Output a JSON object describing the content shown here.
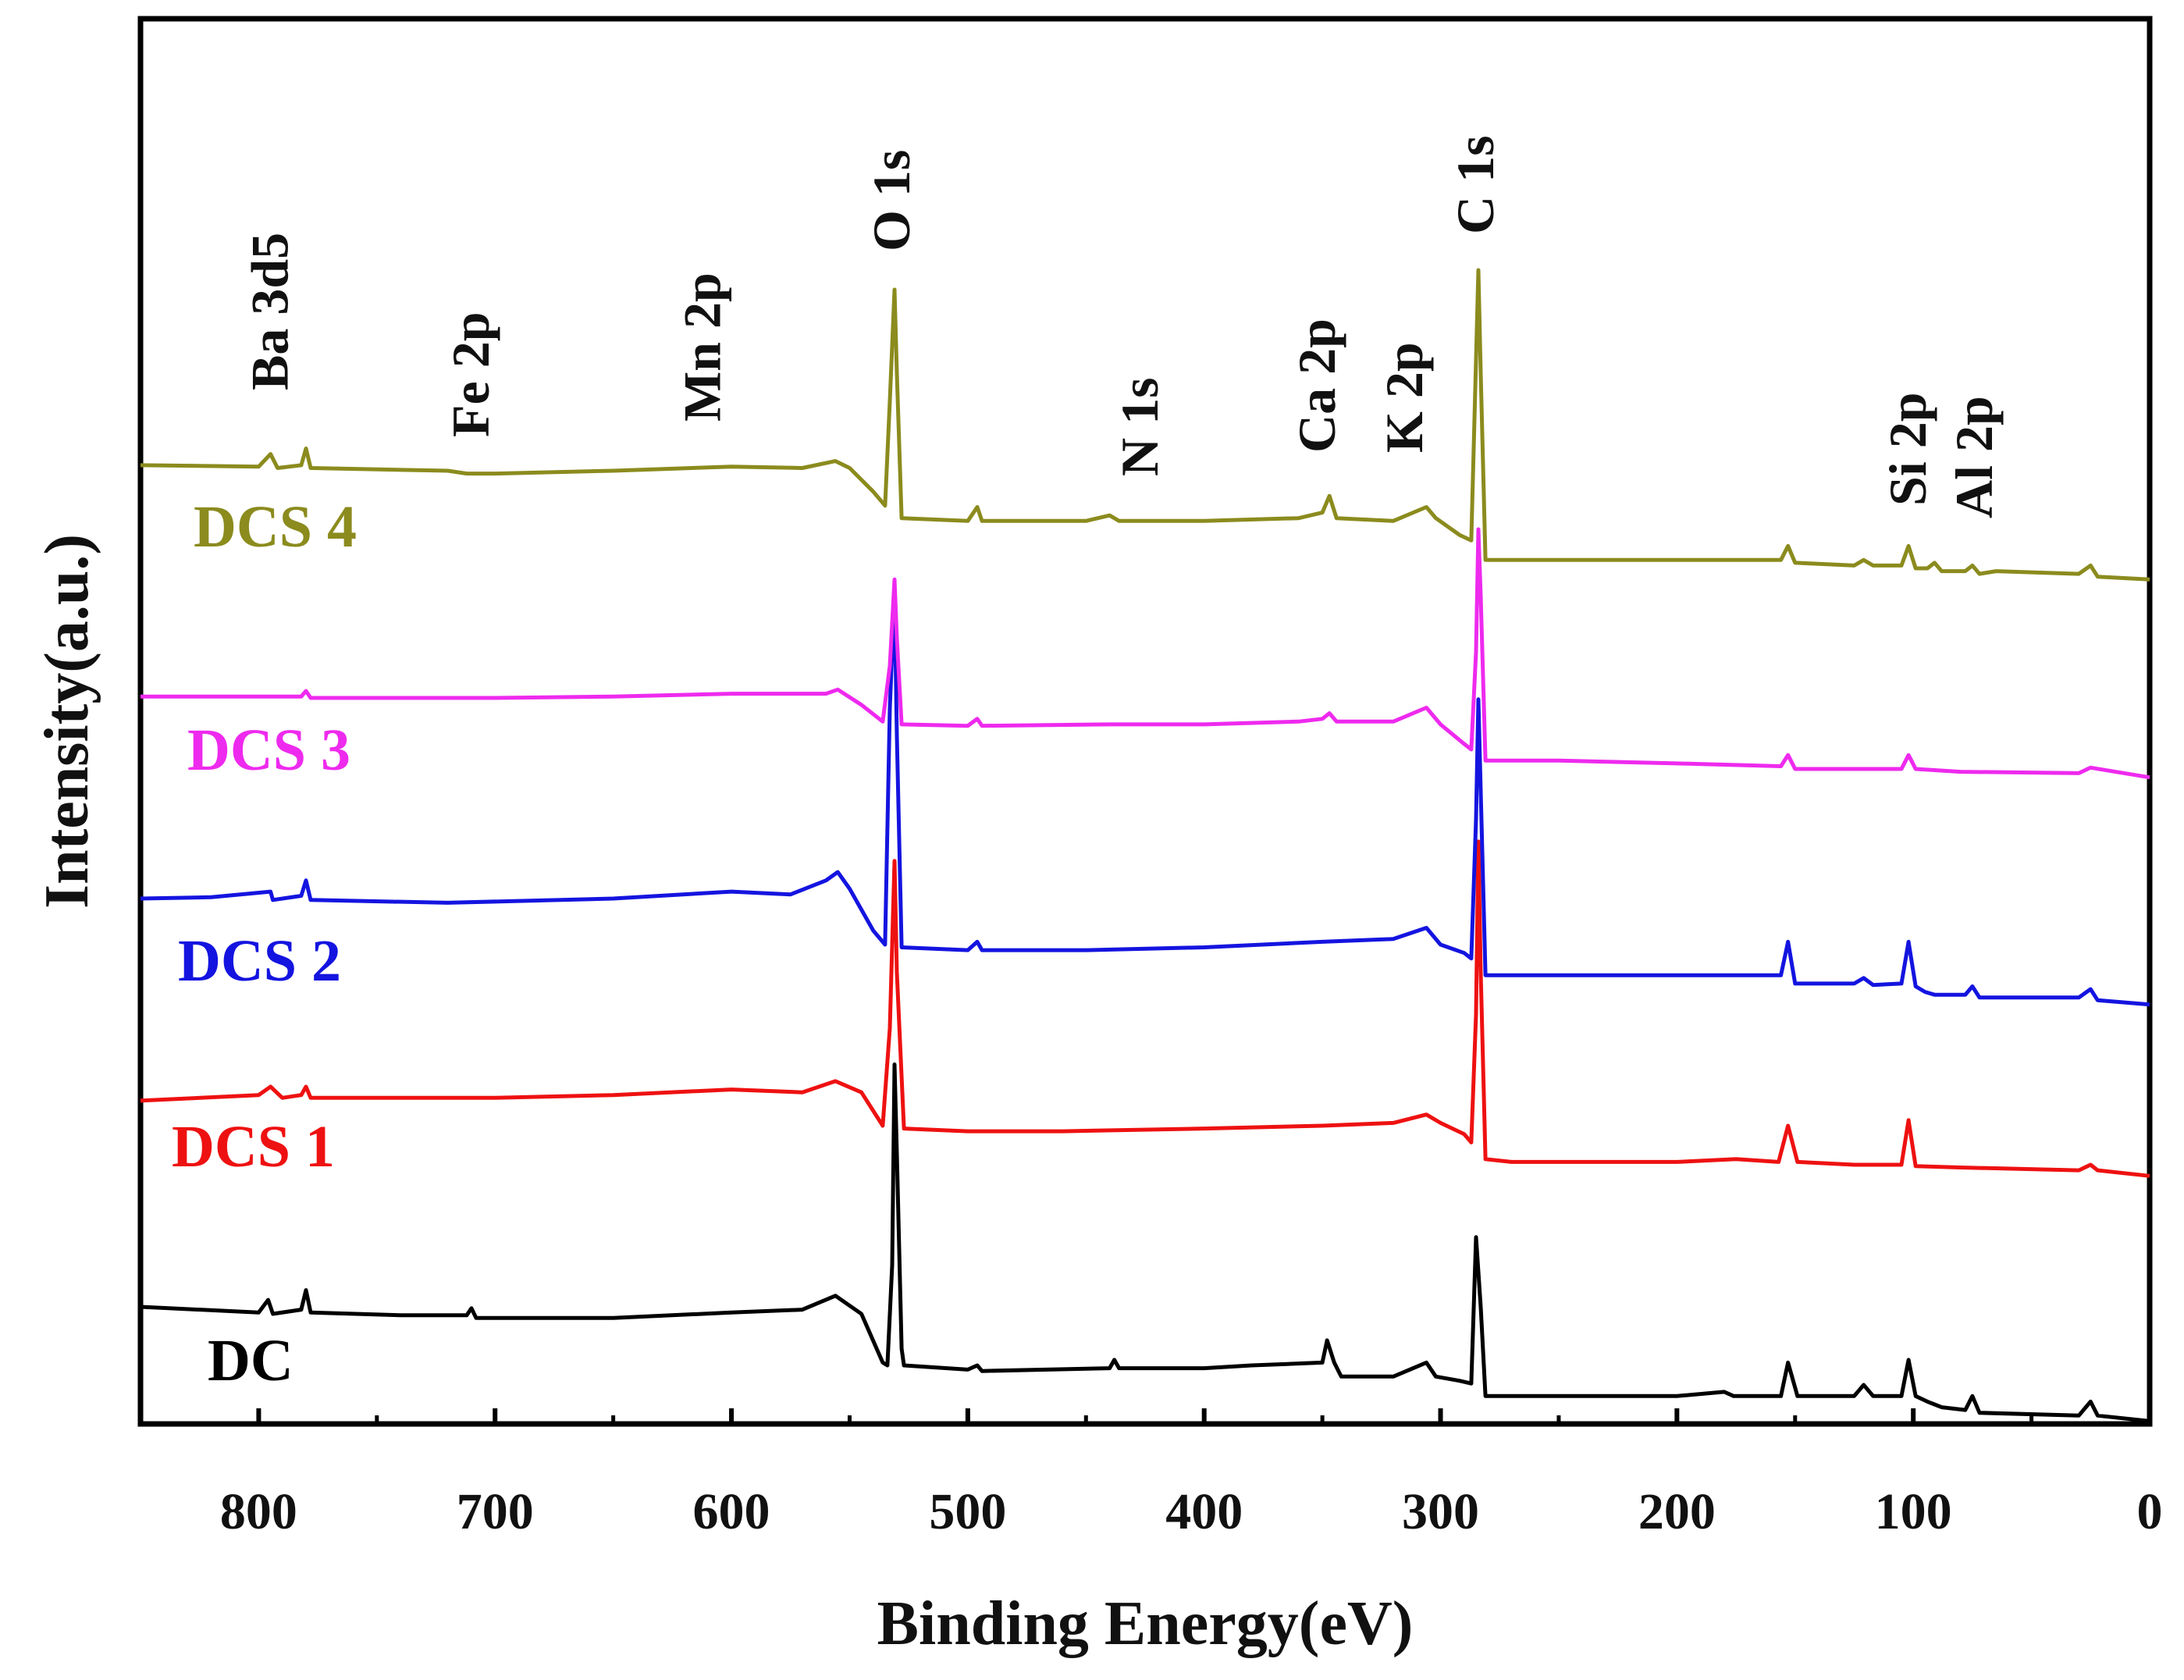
{
  "chart_data": {
    "type": "line",
    "xlabel": "Binding Energy(eV)",
    "ylabel": "Intensity(a.u.)",
    "xlim": [
      850,
      0
    ],
    "x_reversed": true,
    "xticks": [
      "800",
      "700",
      "600",
      "500",
      "400",
      "300",
      "200",
      "100",
      "0"
    ],
    "xtick_values": [
      800,
      700,
      600,
      500,
      400,
      300,
      200,
      100,
      0
    ],
    "grid": false,
    "y_ticks_shown": false,
    "peak_labels": [
      {
        "text": "Ba 3d5",
        "x": 795
      },
      {
        "text": "Fe 2p",
        "x": 710
      },
      {
        "text": "Mn 2p",
        "x": 612
      },
      {
        "text": "O 1s",
        "x": 532
      },
      {
        "text": "N 1s",
        "x": 427
      },
      {
        "text": "Ca 2p",
        "x": 352
      },
      {
        "text": "K 2p",
        "x": 315
      },
      {
        "text": "C 1s",
        "x": 285
      },
      {
        "text": "Si 2p",
        "x": 102
      },
      {
        "text": "Al 2p",
        "x": 74
      }
    ],
    "series": [
      {
        "name": "DC",
        "color": "#000000",
        "points": [
          [
            850,
            930
          ],
          [
            800,
            934
          ],
          [
            796,
            925
          ],
          [
            794,
            935
          ],
          [
            782,
            932
          ],
          [
            780,
            918
          ],
          [
            778,
            934
          ],
          [
            740,
            936
          ],
          [
            712,
            936
          ],
          [
            710,
            931
          ],
          [
            708,
            938
          ],
          [
            650,
            938
          ],
          [
            600,
            934
          ],
          [
            570,
            932
          ],
          [
            556,
            922
          ],
          [
            545,
            935
          ],
          [
            536,
            970
          ],
          [
            534,
            972
          ],
          [
            532,
            900
          ],
          [
            531,
            756
          ],
          [
            530,
            820
          ],
          [
            528,
            960
          ],
          [
            527,
            972
          ],
          [
            500,
            975
          ],
          [
            496,
            972
          ],
          [
            494,
            976
          ],
          [
            440,
            974
          ],
          [
            438,
            968
          ],
          [
            436,
            974
          ],
          [
            400,
            974
          ],
          [
            380,
            972
          ],
          [
            350,
            970
          ],
          [
            348,
            954
          ],
          [
            345,
            970
          ],
          [
            342,
            980
          ],
          [
            320,
            980
          ],
          [
            306,
            970
          ],
          [
            302,
            980
          ],
          [
            292,
            983
          ],
          [
            287,
            985
          ],
          [
            285,
            880
          ],
          [
            283,
            930
          ],
          [
            281,
            994
          ],
          [
            260,
            994
          ],
          [
            200,
            994
          ],
          [
            180,
            991
          ],
          [
            176,
            994
          ],
          [
            156,
            994
          ],
          [
            153,
            970
          ],
          [
            149,
            994
          ],
          [
            125,
            994
          ],
          [
            121,
            986
          ],
          [
            117,
            994
          ],
          [
            105,
            994
          ],
          [
            102,
            968
          ],
          [
            99,
            994
          ],
          [
            94,
            998
          ],
          [
            91,
            1000
          ],
          [
            88,
            1002
          ],
          [
            78,
            1004
          ],
          [
            75,
            994
          ],
          [
            72,
            1006
          ],
          [
            30,
            1008
          ],
          [
            25,
            998
          ],
          [
            22,
            1008
          ],
          [
            0,
            1012
          ]
        ]
      },
      {
        "name": "DCS 1",
        "color": "#ee1111",
        "points": [
          [
            850,
            782
          ],
          [
            800,
            778
          ],
          [
            795,
            772
          ],
          [
            790,
            780
          ],
          [
            782,
            778
          ],
          [
            780,
            772
          ],
          [
            778,
            780
          ],
          [
            700,
            780
          ],
          [
            650,
            778
          ],
          [
            600,
            774
          ],
          [
            570,
            776
          ],
          [
            556,
            768
          ],
          [
            545,
            776
          ],
          [
            536,
            800
          ],
          [
            533,
            730
          ],
          [
            531,
            610
          ],
          [
            530,
            690
          ],
          [
            527,
            802
          ],
          [
            500,
            804
          ],
          [
            460,
            804
          ],
          [
            400,
            802
          ],
          [
            350,
            800
          ],
          [
            320,
            798
          ],
          [
            306,
            792
          ],
          [
            300,
            798
          ],
          [
            290,
            806
          ],
          [
            287,
            812
          ],
          [
            285,
            720
          ],
          [
            284,
            596
          ],
          [
            283,
            690
          ],
          [
            281,
            824
          ],
          [
            270,
            826
          ],
          [
            200,
            826
          ],
          [
            175,
            824
          ],
          [
            157,
            826
          ],
          [
            153,
            800
          ],
          [
            149,
            826
          ],
          [
            125,
            828
          ],
          [
            105,
            828
          ],
          [
            102,
            796
          ],
          [
            99,
            829
          ],
          [
            80,
            830
          ],
          [
            30,
            832
          ],
          [
            25,
            828
          ],
          [
            22,
            832
          ],
          [
            0,
            836
          ]
        ]
      },
      {
        "name": "DCS 2",
        "color": "#1414e0",
        "points": [
          [
            850,
            637
          ],
          [
            820,
            636
          ],
          [
            795,
            632
          ],
          [
            794,
            638
          ],
          [
            782,
            635
          ],
          [
            780,
            624
          ],
          [
            778,
            638
          ],
          [
            720,
            640
          ],
          [
            650,
            637
          ],
          [
            600,
            632
          ],
          [
            575,
            634
          ],
          [
            560,
            624
          ],
          [
            555,
            618
          ],
          [
            550,
            630
          ],
          [
            540,
            660
          ],
          [
            535,
            670
          ],
          [
            533,
            500
          ],
          [
            531,
            418
          ],
          [
            530,
            520
          ],
          [
            528,
            672
          ],
          [
            500,
            674
          ],
          [
            496,
            668
          ],
          [
            494,
            674
          ],
          [
            450,
            674
          ],
          [
            400,
            672
          ],
          [
            350,
            668
          ],
          [
            320,
            666
          ],
          [
            306,
            658
          ],
          [
            300,
            670
          ],
          [
            290,
            676
          ],
          [
            287,
            680
          ],
          [
            285,
            580
          ],
          [
            284,
            494
          ],
          [
            283,
            560
          ],
          [
            281,
            692
          ],
          [
            250,
            692
          ],
          [
            200,
            692
          ],
          [
            180,
            692
          ],
          [
            156,
            692
          ],
          [
            153,
            668
          ],
          [
            150,
            698
          ],
          [
            125,
            698
          ],
          [
            121,
            694
          ],
          [
            117,
            699
          ],
          [
            105,
            698
          ],
          [
            102,
            668
          ],
          [
            99,
            700
          ],
          [
            95,
            704
          ],
          [
            91,
            706
          ],
          [
            78,
            706
          ],
          [
            75,
            700
          ],
          [
            72,
            708
          ],
          [
            30,
            708
          ],
          [
            25,
            702
          ],
          [
            22,
            710
          ],
          [
            0,
            713
          ]
        ]
      },
      {
        "name": "DCS 3",
        "color": "#ee2aee",
        "points": [
          [
            850,
            492
          ],
          [
            800,
            492
          ],
          [
            782,
            492
          ],
          [
            780,
            488
          ],
          [
            778,
            493
          ],
          [
            700,
            493
          ],
          [
            650,
            492
          ],
          [
            600,
            490
          ],
          [
            570,
            490
          ],
          [
            560,
            490
          ],
          [
            555,
            487
          ],
          [
            545,
            498
          ],
          [
            536,
            510
          ],
          [
            533,
            470
          ],
          [
            531,
            408
          ],
          [
            530,
            450
          ],
          [
            528,
            512
          ],
          [
            500,
            513
          ],
          [
            496,
            508
          ],
          [
            494,
            513
          ],
          [
            440,
            512
          ],
          [
            400,
            512
          ],
          [
            360,
            510
          ],
          [
            350,
            508
          ],
          [
            347,
            504
          ],
          [
            344,
            510
          ],
          [
            320,
            510
          ],
          [
            306,
            500
          ],
          [
            300,
            512
          ],
          [
            290,
            526
          ],
          [
            287,
            530
          ],
          [
            285,
            460
          ],
          [
            284,
            372
          ],
          [
            283,
            420
          ],
          [
            281,
            538
          ],
          [
            250,
            538
          ],
          [
            200,
            540
          ],
          [
            156,
            542
          ],
          [
            153,
            534
          ],
          [
            150,
            544
          ],
          [
            120,
            544
          ],
          [
            105,
            544
          ],
          [
            102,
            534
          ],
          [
            99,
            544
          ],
          [
            80,
            546
          ],
          [
            30,
            547
          ],
          [
            25,
            543
          ],
          [
            0,
            550
          ]
        ]
      },
      {
        "name": "DCS 4",
        "color": "#8b8b1e",
        "points": [
          [
            850,
            326
          ],
          [
            800,
            327
          ],
          [
            795,
            318
          ],
          [
            792,
            328
          ],
          [
            782,
            326
          ],
          [
            780,
            314
          ],
          [
            778,
            328
          ],
          [
            720,
            330
          ],
          [
            712,
            332
          ],
          [
            700,
            332
          ],
          [
            650,
            330
          ],
          [
            600,
            327
          ],
          [
            570,
            328
          ],
          [
            556,
            323
          ],
          [
            550,
            328
          ],
          [
            540,
            345
          ],
          [
            535,
            355
          ],
          [
            533,
            280
          ],
          [
            531,
            200
          ],
          [
            530,
            260
          ],
          [
            528,
            364
          ],
          [
            500,
            366
          ],
          [
            496,
            356
          ],
          [
            494,
            366
          ],
          [
            450,
            366
          ],
          [
            440,
            362
          ],
          [
            436,
            366
          ],
          [
            400,
            366
          ],
          [
            360,
            364
          ],
          [
            350,
            360
          ],
          [
            347,
            348
          ],
          [
            344,
            364
          ],
          [
            320,
            366
          ],
          [
            306,
            356
          ],
          [
            302,
            364
          ],
          [
            292,
            376
          ],
          [
            287,
            380
          ],
          [
            285,
            250
          ],
          [
            284,
            186
          ],
          [
            283,
            260
          ],
          [
            281,
            394
          ],
          [
            250,
            394
          ],
          [
            200,
            394
          ],
          [
            180,
            394
          ],
          [
            156,
            394
          ],
          [
            153,
            384
          ],
          [
            150,
            396
          ],
          [
            125,
            398
          ],
          [
            121,
            394
          ],
          [
            117,
            398
          ],
          [
            105,
            398
          ],
          [
            102,
            384
          ],
          [
            99,
            400
          ],
          [
            94,
            400
          ],
          [
            91,
            396
          ],
          [
            88,
            402
          ],
          [
            78,
            402
          ],
          [
            75,
            398
          ],
          [
            72,
            404
          ],
          [
            65,
            402
          ],
          [
            30,
            404
          ],
          [
            25,
            398
          ],
          [
            22,
            406
          ],
          [
            0,
            408
          ]
        ]
      }
    ]
  }
}
